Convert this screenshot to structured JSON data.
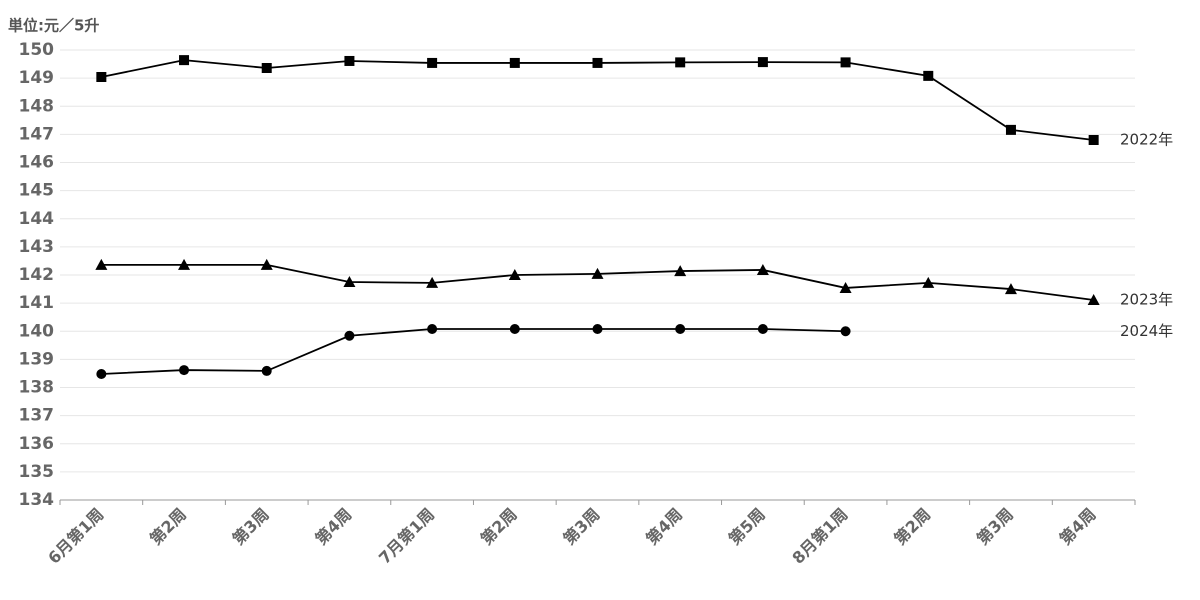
{
  "chart_data": {
    "type": "line",
    "unit_label": "単位:元／5升",
    "categories": [
      "6月第1周",
      "第2周",
      "第3周",
      "第4周",
      "7月第1周",
      "第2周",
      "第3周",
      "第4周",
      "第5周",
      "8月第1周",
      "第2周",
      "第3周",
      "第4周"
    ],
    "series": [
      {
        "name": "2022年",
        "color": "#000000",
        "marker": "square",
        "values": [
          149.04,
          149.64,
          149.36,
          149.61,
          149.54,
          149.54,
          149.54,
          149.56,
          149.57,
          149.56,
          149.08,
          147.16,
          146.8
        ]
      },
      {
        "name": "2023年",
        "color": "#000000",
        "marker": "triangle",
        "values": [
          142.36,
          142.36,
          142.36,
          141.75,
          141.72,
          142.0,
          142.04,
          142.14,
          142.18,
          141.54,
          141.72,
          141.5,
          141.11
        ]
      },
      {
        "name": "2024年",
        "color": "#000000",
        "marker": "circle",
        "values": [
          138.48,
          138.62,
          138.59,
          139.84,
          140.08,
          140.08,
          140.08,
          140.08,
          140.08,
          140.0,
          null,
          null,
          null
        ]
      }
    ],
    "ylim": [
      134,
      150
    ],
    "yticks": [
      134,
      135,
      136,
      137,
      138,
      139,
      140,
      141,
      142,
      143,
      144,
      145,
      146,
      147,
      148,
      149,
      150
    ],
    "grid": true
  }
}
